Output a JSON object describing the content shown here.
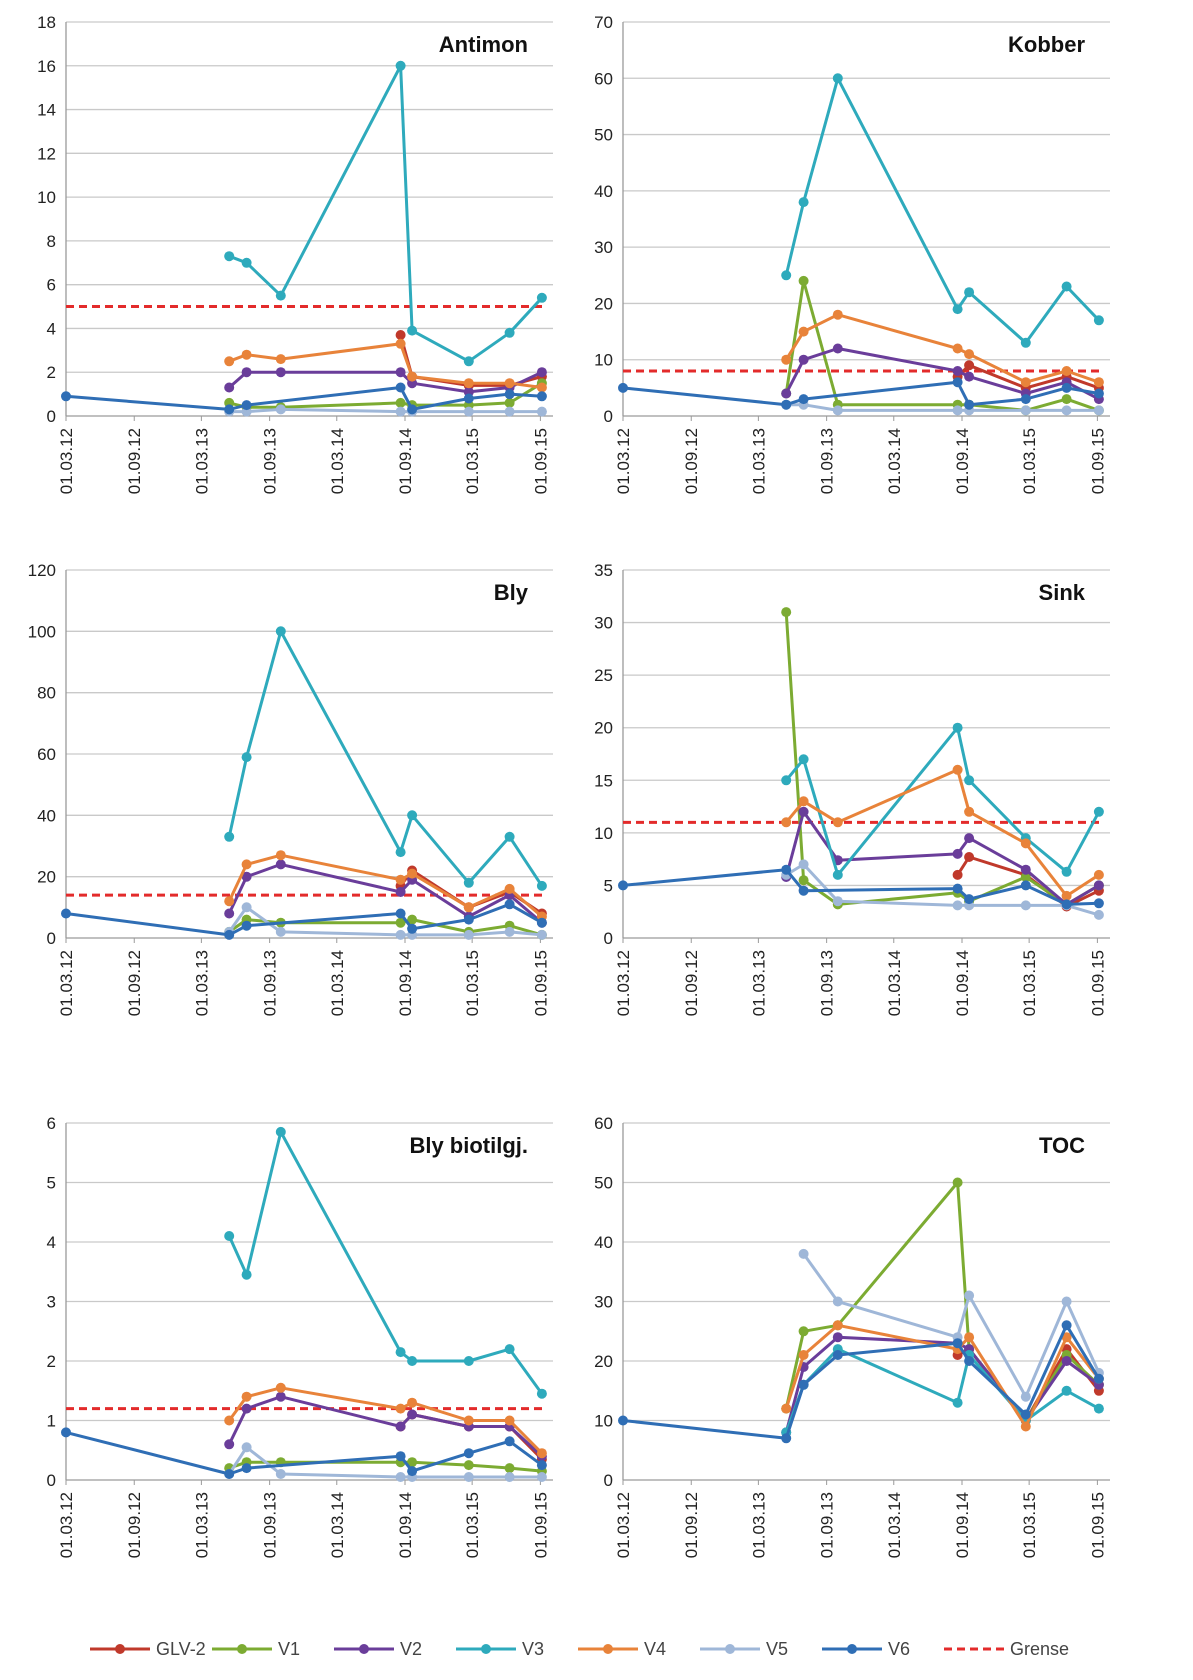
{
  "colors": {
    "GLV-2": "#c0392b",
    "V1": "#7cab32",
    "V2": "#6a3d9a",
    "V3": "#2eaabc",
    "V4": "#e8833a",
    "V5": "#9fb7d8",
    "V6": "#2f6eb5",
    "Grense": "#e32b2b"
  },
  "legend": [
    "GLV-2",
    "V1",
    "V2",
    "V3",
    "V4",
    "V5",
    "V6",
    "Grense"
  ],
  "x_ticks": [
    "01.03.12",
    "01.09.12",
    "01.03.13",
    "01.09.13",
    "01.03.14",
    "01.09.14",
    "01.03.15",
    "01.09.15"
  ],
  "chart_data": [
    {
      "type": "line",
      "title": "Antimon",
      "ylim": [
        0,
        18
      ],
      "yticks": [
        0,
        2,
        4,
        6,
        8,
        10,
        12,
        14,
        16,
        18
      ],
      "grense": 5,
      "series": [
        {
          "name": "GLV-2",
          "x": [
            "2014-08-20",
            "2014-09-20",
            "2015-02-20",
            "2015-06-10",
            "2015-09-05"
          ],
          "y": [
            3.7,
            1.8,
            1.4,
            1.4,
            1.8
          ]
        },
        {
          "name": "V1",
          "x": [
            "2013-05-15",
            "2013-07-01",
            "2013-10-01",
            "2014-08-20",
            "2014-09-20",
            "2015-02-20",
            "2015-06-10",
            "2015-09-05"
          ],
          "y": [
            0.6,
            0.4,
            0.4,
            0.6,
            0.5,
            0.5,
            0.6,
            1.5
          ]
        },
        {
          "name": "V2",
          "x": [
            "2013-05-15",
            "2013-07-01",
            "2013-10-01",
            "2014-08-20",
            "2014-09-20",
            "2015-02-20",
            "2015-06-10",
            "2015-09-05"
          ],
          "y": [
            1.3,
            2.0,
            2.0,
            2.0,
            1.5,
            1.1,
            1.3,
            2.0
          ]
        },
        {
          "name": "V3",
          "x": [
            "2013-05-15",
            "2013-07-01",
            "2013-10-01",
            "2014-08-20",
            "2014-09-20",
            "2015-02-20",
            "2015-06-10",
            "2015-09-05"
          ],
          "y": [
            7.3,
            7.0,
            5.5,
            16.0,
            3.9,
            2.5,
            3.8,
            5.4
          ]
        },
        {
          "name": "V4",
          "x": [
            "2013-05-15",
            "2013-07-01",
            "2013-10-01",
            "2014-08-20",
            "2014-09-20",
            "2015-02-20",
            "2015-06-10",
            "2015-09-05"
          ],
          "y": [
            2.5,
            2.8,
            2.6,
            3.3,
            1.8,
            1.5,
            1.5,
            1.3
          ]
        },
        {
          "name": "V5",
          "x": [
            "2013-05-15",
            "2013-07-01",
            "2013-10-01",
            "2014-08-20",
            "2014-09-20",
            "2015-02-20",
            "2015-06-10",
            "2015-09-05"
          ],
          "y": [
            0.2,
            0.2,
            0.3,
            0.2,
            0.2,
            0.2,
            0.2,
            0.2
          ]
        },
        {
          "name": "V6",
          "x": [
            "2012-03-01",
            "2013-05-15",
            "2013-07-01",
            "2014-08-20",
            "2014-09-20",
            "2015-02-20",
            "2015-06-10",
            "2015-09-05"
          ],
          "y": [
            0.9,
            0.3,
            0.5,
            1.3,
            0.3,
            0.8,
            1.0,
            0.9
          ]
        }
      ]
    },
    {
      "type": "line",
      "title": "Kobber",
      "ylim": [
        0,
        70
      ],
      "yticks": [
        0,
        10,
        20,
        30,
        40,
        50,
        60,
        70
      ],
      "grense": 8,
      "series": [
        {
          "name": "GLV-2",
          "x": [
            "2014-08-20",
            "2014-09-20",
            "2015-02-20",
            "2015-06-10",
            "2015-09-05"
          ],
          "y": [
            7,
            9,
            5,
            7,
            5
          ]
        },
        {
          "name": "V1",
          "x": [
            "2013-05-15",
            "2013-07-01",
            "2013-10-01",
            "2014-08-20",
            "2014-09-20",
            "2015-02-20",
            "2015-06-10",
            "2015-09-05"
          ],
          "y": [
            4,
            24,
            2,
            2,
            2,
            1,
            3,
            1
          ]
        },
        {
          "name": "V2",
          "x": [
            "2013-05-15",
            "2013-07-01",
            "2013-10-01",
            "2014-08-20",
            "2014-09-20",
            "2015-02-20",
            "2015-06-10",
            "2015-09-05"
          ],
          "y": [
            4,
            10,
            12,
            8,
            7,
            4,
            6,
            3
          ]
        },
        {
          "name": "V3",
          "x": [
            "2013-05-15",
            "2013-07-01",
            "2013-10-01",
            "2014-08-20",
            "2014-09-20",
            "2015-02-20",
            "2015-06-10",
            "2015-09-05"
          ],
          "y": [
            25,
            38,
            60,
            19,
            22,
            13,
            23,
            17
          ]
        },
        {
          "name": "V4",
          "x": [
            "2013-05-15",
            "2013-07-01",
            "2013-10-01",
            "2014-08-20",
            "2014-09-20",
            "2015-02-20",
            "2015-06-10",
            "2015-09-05"
          ],
          "y": [
            10,
            15,
            18,
            12,
            11,
            6,
            8,
            6
          ]
        },
        {
          "name": "V5",
          "x": [
            "2013-05-15",
            "2013-07-01",
            "2013-10-01",
            "2014-08-20",
            "2014-09-20",
            "2015-02-20",
            "2015-06-10",
            "2015-09-05"
          ],
          "y": [
            2,
            2,
            1,
            1,
            1,
            1,
            1,
            1
          ]
        },
        {
          "name": "V6",
          "x": [
            "2012-03-01",
            "2013-05-15",
            "2013-07-01",
            "2014-08-20",
            "2014-09-20",
            "2015-02-20",
            "2015-06-10",
            "2015-09-05"
          ],
          "y": [
            5,
            2,
            3,
            6,
            2,
            3,
            5,
            4
          ]
        }
      ]
    },
    {
      "type": "line",
      "title": "Bly",
      "ylim": [
        0,
        120
      ],
      "yticks": [
        0,
        20,
        40,
        60,
        80,
        100,
        120
      ],
      "grense": 14,
      "series": [
        {
          "name": "GLV-2",
          "x": [
            "2014-08-20",
            "2014-09-20",
            "2015-02-20",
            "2015-06-10",
            "2015-09-05"
          ],
          "y": [
            17,
            22,
            10,
            15,
            8
          ]
        },
        {
          "name": "V1",
          "x": [
            "2013-05-15",
            "2013-07-01",
            "2013-10-01",
            "2014-08-20",
            "2014-09-20",
            "2015-02-20",
            "2015-06-10",
            "2015-09-05"
          ],
          "y": [
            2,
            6,
            5,
            5,
            6,
            2,
            4,
            1
          ]
        },
        {
          "name": "V2",
          "x": [
            "2013-05-15",
            "2013-07-01",
            "2013-10-01",
            "2014-08-20",
            "2014-09-20",
            "2015-02-20",
            "2015-06-10",
            "2015-09-05"
          ],
          "y": [
            8,
            20,
            24,
            15,
            19,
            7,
            14,
            5
          ]
        },
        {
          "name": "V3",
          "x": [
            "2013-05-15",
            "2013-07-01",
            "2013-10-01",
            "2014-08-20",
            "2014-09-20",
            "2015-02-20",
            "2015-06-10",
            "2015-09-05"
          ],
          "y": [
            33,
            59,
            100,
            28,
            40,
            18,
            33,
            17
          ]
        },
        {
          "name": "V4",
          "x": [
            "2013-05-15",
            "2013-07-01",
            "2013-10-01",
            "2014-08-20",
            "2014-09-20",
            "2015-02-20",
            "2015-06-10",
            "2015-09-05"
          ],
          "y": [
            12,
            24,
            27,
            19,
            21,
            10,
            16,
            7
          ]
        },
        {
          "name": "V5",
          "x": [
            "2013-05-15",
            "2013-07-01",
            "2013-10-01",
            "2014-08-20",
            "2014-09-20",
            "2015-02-20",
            "2015-06-10",
            "2015-09-05"
          ],
          "y": [
            2,
            10,
            2,
            1,
            1,
            1,
            2,
            1
          ]
        },
        {
          "name": "V6",
          "x": [
            "2012-03-01",
            "2013-05-15",
            "2013-07-01",
            "2014-08-20",
            "2014-09-20",
            "2015-02-20",
            "2015-06-10",
            "2015-09-05"
          ],
          "y": [
            8,
            1,
            4,
            8,
            3,
            6,
            11,
            5
          ]
        }
      ]
    },
    {
      "type": "line",
      "title": "Sink",
      "ylim": [
        0,
        35
      ],
      "yticks": [
        0,
        5,
        10,
        15,
        20,
        25,
        30,
        35
      ],
      "grense": 11,
      "series": [
        {
          "name": "GLV-2",
          "x": [
            "2014-08-20",
            "2014-09-20",
            "2015-02-20",
            "2015-06-10",
            "2015-09-05"
          ],
          "y": [
            6,
            7.7,
            6,
            3,
            4.5
          ]
        },
        {
          "name": "V1",
          "x": [
            "2013-05-15",
            "2013-07-01",
            "2013-10-01",
            "2014-08-20",
            "2014-09-20",
            "2015-02-20",
            "2015-06-10",
            "2015-09-05"
          ],
          "y": [
            31,
            5.5,
            3.2,
            4.3,
            3.5,
            5.8,
            3.2,
            5
          ]
        },
        {
          "name": "V2",
          "x": [
            "2013-05-15",
            "2013-07-01",
            "2013-10-01",
            "2014-08-20",
            "2014-09-20",
            "2015-02-20",
            "2015-06-10",
            "2015-09-05"
          ],
          "y": [
            5.8,
            12,
            7.4,
            8,
            9.5,
            6.5,
            3.2,
            5
          ]
        },
        {
          "name": "V3",
          "x": [
            "2013-05-15",
            "2013-07-01",
            "2013-10-01",
            "2014-08-20",
            "2014-09-20",
            "2015-02-20",
            "2015-06-10",
            "2015-09-05"
          ],
          "y": [
            15,
            17,
            6,
            20,
            15,
            9.5,
            6.3,
            12
          ]
        },
        {
          "name": "V4",
          "x": [
            "2013-05-15",
            "2013-07-01",
            "2013-10-01",
            "2014-08-20",
            "2014-09-20",
            "2015-02-20",
            "2015-06-10",
            "2015-09-05"
          ],
          "y": [
            11,
            13,
            11,
            16,
            12,
            9,
            4,
            6
          ]
        },
        {
          "name": "V5",
          "x": [
            "2013-05-15",
            "2013-07-01",
            "2013-10-01",
            "2014-08-20",
            "2014-09-20",
            "2015-02-20",
            "2015-06-10",
            "2015-09-05"
          ],
          "y": [
            6,
            7,
            3.5,
            3.1,
            3.1,
            3.1,
            3.1,
            2.2
          ]
        },
        {
          "name": "V6",
          "x": [
            "2012-03-01",
            "2013-05-15",
            "2013-07-01",
            "2014-08-20",
            "2014-09-20",
            "2015-02-20",
            "2015-06-10",
            "2015-09-05"
          ],
          "y": [
            5,
            6.5,
            4.5,
            4.7,
            3.7,
            5,
            3.2,
            3.3
          ]
        }
      ]
    },
    {
      "type": "line",
      "title": "Bly biotilgj.",
      "ylim": [
        0,
        6
      ],
      "yticks": [
        0,
        1,
        2,
        3,
        4,
        5,
        6
      ],
      "grense": 1.2,
      "series": [
        {
          "name": "GLV-2",
          "x": [
            "2014-08-20",
            "2014-09-20",
            "2015-02-20",
            "2015-06-10",
            "2015-09-05"
          ],
          "y": [
            0.9,
            1.1,
            0.9,
            0.9,
            0.35
          ]
        },
        {
          "name": "V1",
          "x": [
            "2013-05-15",
            "2013-07-01",
            "2013-10-01",
            "2014-08-20",
            "2014-09-20",
            "2015-02-20",
            "2015-06-10",
            "2015-09-05"
          ],
          "y": [
            0.2,
            0.3,
            0.3,
            0.3,
            0.3,
            0.25,
            0.2,
            0.15
          ]
        },
        {
          "name": "V2",
          "x": [
            "2013-05-15",
            "2013-07-01",
            "2013-10-01",
            "2014-08-20",
            "2014-09-20",
            "2015-02-20",
            "2015-06-10",
            "2015-09-05"
          ],
          "y": [
            0.6,
            1.2,
            1.4,
            0.9,
            1.1,
            0.9,
            0.9,
            0.4
          ]
        },
        {
          "name": "V3",
          "x": [
            "2013-05-15",
            "2013-07-01",
            "2013-10-01",
            "2014-08-20",
            "2014-09-20",
            "2015-02-20",
            "2015-06-10",
            "2015-09-05"
          ],
          "y": [
            4.1,
            3.45,
            5.85,
            2.15,
            2.0,
            2.0,
            2.2,
            1.45
          ]
        },
        {
          "name": "V4",
          "x": [
            "2013-05-15",
            "2013-07-01",
            "2013-10-01",
            "2014-08-20",
            "2014-09-20",
            "2015-02-20",
            "2015-06-10",
            "2015-09-05"
          ],
          "y": [
            1.0,
            1.4,
            1.55,
            1.2,
            1.3,
            1.0,
            1.0,
            0.45
          ]
        },
        {
          "name": "V5",
          "x": [
            "2013-05-15",
            "2013-07-01",
            "2013-10-01",
            "2014-08-20",
            "2014-09-20",
            "2015-02-20",
            "2015-06-10",
            "2015-09-05"
          ],
          "y": [
            0.1,
            0.55,
            0.1,
            0.05,
            0.05,
            0.05,
            0.05,
            0.05
          ]
        },
        {
          "name": "V6",
          "x": [
            "2012-03-01",
            "2013-05-15",
            "2013-07-01",
            "2014-08-20",
            "2014-09-20",
            "2015-02-20",
            "2015-06-10",
            "2015-09-05"
          ],
          "y": [
            0.8,
            0.1,
            0.2,
            0.4,
            0.15,
            0.45,
            0.65,
            0.25
          ]
        }
      ]
    },
    {
      "type": "line",
      "title": "TOC",
      "ylim": [
        0,
        60
      ],
      "yticks": [
        0,
        10,
        20,
        30,
        40,
        50,
        60
      ],
      "series": [
        {
          "name": "GLV-2",
          "x": [
            "2014-08-20",
            "2014-09-20",
            "2015-02-20",
            "2015-06-10",
            "2015-09-05"
          ],
          "y": [
            21,
            22,
            10,
            22,
            15
          ]
        },
        {
          "name": "V1",
          "x": [
            "2013-05-15",
            "2013-07-01",
            "2013-10-01",
            "2014-08-20",
            "2014-09-20",
            "2015-02-20",
            "2015-06-10",
            "2015-09-05"
          ],
          "y": [
            12,
            25,
            26,
            50,
            22,
            10,
            21,
            16
          ]
        },
        {
          "name": "V2",
          "x": [
            "2013-05-15",
            "2013-07-01",
            "2013-10-01",
            "2014-08-20",
            "2014-09-20",
            "2015-02-20",
            "2015-06-10",
            "2015-09-05"
          ],
          "y": [
            8,
            19,
            24,
            23,
            22,
            10,
            20,
            16
          ]
        },
        {
          "name": "V3",
          "x": [
            "2013-05-15",
            "2013-07-01",
            "2013-10-01",
            "2014-08-20",
            "2014-09-20",
            "2015-02-20",
            "2015-06-10",
            "2015-09-05"
          ],
          "y": [
            8,
            16,
            22,
            13,
            21,
            10,
            15,
            12
          ]
        },
        {
          "name": "V4",
          "x": [
            "2013-05-15",
            "2013-07-01",
            "2013-10-01",
            "2014-08-20",
            "2014-09-20",
            "2015-02-20",
            "2015-06-10",
            "2015-09-05"
          ],
          "y": [
            12,
            21,
            26,
            22,
            24,
            9,
            24,
            17
          ]
        },
        {
          "name": "V5",
          "x": [
            "2013-07-01",
            "2013-10-01",
            "2014-08-20",
            "2014-09-20",
            "2015-02-20",
            "2015-06-10",
            "2015-09-05"
          ],
          "y": [
            38,
            30,
            24,
            31,
            14,
            30,
            18
          ]
        },
        {
          "name": "V6",
          "x": [
            "2012-03-01",
            "2013-05-15",
            "2013-07-01",
            "2013-10-01",
            "2014-08-20",
            "2014-09-20",
            "2015-02-20",
            "2015-06-10",
            "2015-09-05"
          ],
          "y": [
            10,
            7,
            16,
            21,
            23,
            20,
            11,
            26,
            17
          ]
        }
      ]
    }
  ]
}
